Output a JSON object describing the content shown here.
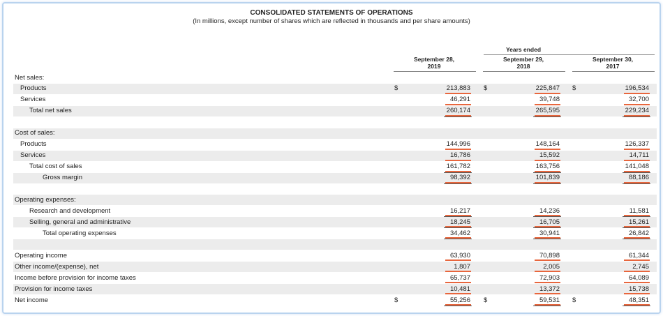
{
  "header": {
    "title": "CONSOLIDATED STATEMENTS OF OPERATIONS",
    "subtitle": "(In millions, except number of shares which are reflected in thousands and per share amounts)",
    "years_ended": "Years ended",
    "columns": [
      {
        "date": "September 28,",
        "year": "2019"
      },
      {
        "date": "September 29,",
        "year": "2018"
      },
      {
        "date": "September 30,",
        "year": "2017"
      }
    ]
  },
  "currency": "$",
  "sections": [
    {
      "heading": "Net sales:",
      "rows": [
        {
          "label": "Products",
          "level": 1,
          "currency": true,
          "values": [
            "213,883",
            "225,847",
            "196,534"
          ]
        },
        {
          "label": "Services",
          "level": 1,
          "values": [
            "46,291",
            "39,748",
            "32,700"
          ]
        },
        {
          "label": "Total net sales",
          "level": 2,
          "values": [
            "260,174",
            "265,595",
            "229,234"
          ]
        }
      ]
    },
    {
      "heading": "Cost of sales:",
      "rows": [
        {
          "label": "Products",
          "level": 1,
          "values": [
            "144,996",
            "148,164",
            "126,337"
          ]
        },
        {
          "label": "Services",
          "level": 1,
          "values": [
            "16,786",
            "15,592",
            "14,711"
          ]
        },
        {
          "label": "Total cost of sales",
          "level": 2,
          "values": [
            "161,782",
            "163,756",
            "141,048"
          ]
        },
        {
          "label": "Gross margin",
          "level": 3,
          "values": [
            "98,392",
            "101,839",
            "88,186"
          ]
        }
      ]
    },
    {
      "heading": "Operating expenses:",
      "rows": [
        {
          "label": "Research and development",
          "level": 2,
          "values": [
            "16,217",
            "14,236",
            "11,581"
          ]
        },
        {
          "label": "Selling, general and administrative",
          "level": 2,
          "values": [
            "18,245",
            "16,705",
            "15,261"
          ]
        },
        {
          "label": "Total operating expenses",
          "level": 3,
          "values": [
            "34,462",
            "30,941",
            "26,842"
          ]
        }
      ]
    },
    {
      "rows": [
        {
          "label": "Operating income",
          "level": 0,
          "values": [
            "63,930",
            "70,898",
            "61,344"
          ]
        },
        {
          "label": "Other income/(expense), net",
          "level": 0,
          "values": [
            "1,807",
            "2,005",
            "2,745"
          ]
        },
        {
          "label": "Income before provision for income taxes",
          "level": 0,
          "values": [
            "65,737",
            "72,903",
            "64,089"
          ]
        },
        {
          "label": "Provision for income taxes",
          "level": 0,
          "values": [
            "10,481",
            "13,372",
            "15,738"
          ]
        },
        {
          "label": "Net income",
          "level": 0,
          "currency": true,
          "values": [
            "55,256",
            "59,531",
            "48,351"
          ]
        }
      ]
    }
  ]
}
